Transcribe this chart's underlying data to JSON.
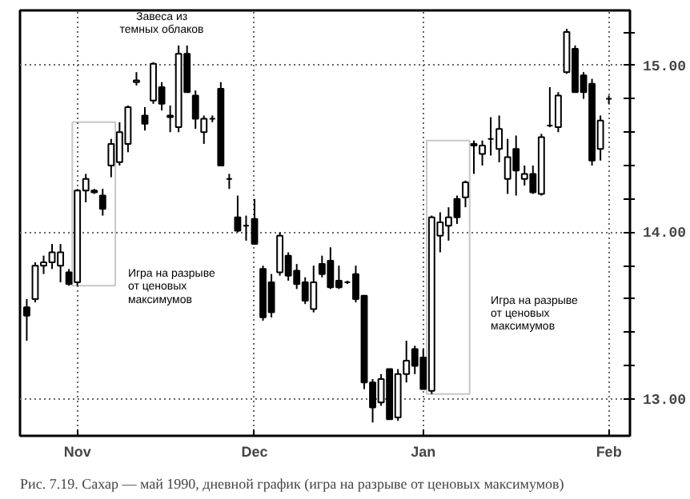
{
  "chart_data": {
    "type": "candlestick",
    "title": "Рис. 7.19. Сахар — май 1990, дневной график (игра на разрыве от ценовых максимумов)",
    "categories": [
      null,
      null,
      null,
      null,
      null,
      null,
      "Nov",
      null,
      null,
      null,
      null,
      null,
      null,
      null,
      null,
      null,
      null,
      null,
      null,
      null,
      null,
      null,
      null,
      null,
      null,
      null,
      null,
      "Dec",
      null,
      null,
      null,
      null,
      null,
      null,
      null,
      null,
      null,
      null,
      null,
      null,
      null,
      null,
      null,
      null,
      null,
      null,
      null,
      "Jan",
      null,
      null,
      null,
      null,
      null,
      null,
      null,
      null,
      null,
      null,
      null,
      null,
      null,
      null,
      null,
      null,
      null,
      null,
      null,
      null,
      null,
      "Feb"
    ],
    "ohlc": [
      [
        13.55,
        13.6,
        13.35,
        13.5
      ],
      [
        13.6,
        13.82,
        13.58,
        13.8
      ],
      [
        13.8,
        13.86,
        13.75,
        13.82
      ],
      [
        13.82,
        13.93,
        13.78,
        13.88
      ],
      [
        13.8,
        13.93,
        13.7,
        13.88
      ],
      [
        13.76,
        13.78,
        13.68,
        13.69
      ],
      [
        13.7,
        14.26,
        13.68,
        14.25
      ],
      [
        14.25,
        14.35,
        14.18,
        14.32
      ],
      [
        14.25,
        14.26,
        14.23,
        14.24
      ],
      [
        14.22,
        14.26,
        14.1,
        14.14
      ],
      [
        14.4,
        14.56,
        14.33,
        14.53
      ],
      [
        14.42,
        14.66,
        14.4,
        14.6
      ],
      [
        14.53,
        14.76,
        14.48,
        14.75
      ],
      [
        14.9,
        14.96,
        14.88,
        14.91
      ],
      [
        14.7,
        14.75,
        14.61,
        14.65
      ],
      [
        14.79,
        15.02,
        14.77,
        15.01
      ],
      [
        14.87,
        14.9,
        14.73,
        14.77
      ],
      [
        14.7,
        14.76,
        14.6,
        14.69
      ],
      [
        14.63,
        15.12,
        14.6,
        15.07
      ],
      [
        15.07,
        15.12,
        14.84,
        14.84
      ],
      [
        14.82,
        14.85,
        14.62,
        14.68
      ],
      [
        14.6,
        14.7,
        14.53,
        14.68
      ],
      [
        14.68,
        14.7,
        14.66,
        14.68
      ],
      [
        14.86,
        14.9,
        14.4,
        14.4
      ],
      [
        14.32,
        14.35,
        14.26,
        14.32
      ],
      [
        14.09,
        14.22,
        14.0,
        14.01
      ],
      [
        14.04,
        14.1,
        13.95,
        14.04
      ],
      [
        14.08,
        14.2,
        13.93,
        13.93
      ],
      [
        13.78,
        13.8,
        13.47,
        13.49
      ],
      [
        13.7,
        13.75,
        13.49,
        13.52
      ],
      [
        13.76,
        14.0,
        13.74,
        13.98
      ],
      [
        13.86,
        13.88,
        13.71,
        13.74
      ],
      [
        13.77,
        13.81,
        13.66,
        13.69
      ],
      [
        13.7,
        13.73,
        13.57,
        13.59
      ],
      [
        13.54,
        13.8,
        13.52,
        13.7
      ],
      [
        13.81,
        13.86,
        13.73,
        13.75
      ],
      [
        13.83,
        13.91,
        13.66,
        13.67
      ],
      [
        13.71,
        13.8,
        13.66,
        13.67
      ],
      [
        13.7,
        13.71,
        13.69,
        13.7
      ],
      [
        13.75,
        13.8,
        13.58,
        13.6
      ],
      [
        13.62,
        13.62,
        13.06,
        13.1
      ],
      [
        13.1,
        13.12,
        12.86,
        12.95
      ],
      [
        12.98,
        13.15,
        12.96,
        13.12
      ],
      [
        13.18,
        13.18,
        12.88,
        12.88
      ],
      [
        12.89,
        13.18,
        12.87,
        13.15
      ],
      [
        13.15,
        13.35,
        13.1,
        13.23
      ],
      [
        13.3,
        13.32,
        13.15,
        13.2
      ],
      [
        13.25,
        13.3,
        13.06,
        13.06
      ],
      [
        13.05,
        14.1,
        13.03,
        14.09
      ],
      [
        13.98,
        14.12,
        13.88,
        14.06
      ],
      [
        14.04,
        14.15,
        13.95,
        14.09
      ],
      [
        14.2,
        14.22,
        14.05,
        14.09
      ],
      [
        14.21,
        14.31,
        14.15,
        14.3
      ],
      [
        14.52,
        14.55,
        14.35,
        14.53
      ],
      [
        14.47,
        14.55,
        14.4,
        14.52
      ],
      [
        14.56,
        14.69,
        14.46,
        14.56
      ],
      [
        14.5,
        14.7,
        14.42,
        14.62
      ],
      [
        14.32,
        14.56,
        14.23,
        14.45
      ],
      [
        14.5,
        14.58,
        14.22,
        14.37
      ],
      [
        14.32,
        14.4,
        14.28,
        14.35
      ],
      [
        14.35,
        14.4,
        14.23,
        14.24
      ],
      [
        14.23,
        14.59,
        14.22,
        14.57
      ],
      [
        14.64,
        14.87,
        14.63,
        14.64
      ],
      [
        14.63,
        14.84,
        14.6,
        14.82
      ],
      [
        14.96,
        15.22,
        14.95,
        15.2
      ],
      [
        15.1,
        15.12,
        14.84,
        14.84
      ],
      [
        14.94,
        14.96,
        14.8,
        14.84
      ],
      [
        14.89,
        14.92,
        14.4,
        14.43
      ],
      [
        14.5,
        14.7,
        14.43,
        14.67
      ],
      [
        14.8,
        14.82,
        14.77,
        14.8
      ]
    ],
    "color": "#000000",
    "ylim": [
      12.78,
      15.33
    ],
    "yticks": [
      {
        "value": 13,
        "label": "13.00"
      },
      {
        "value": 13.2,
        "label": null
      },
      {
        "value": 13.4,
        "label": null
      },
      {
        "value": 13.6,
        "label": null
      },
      {
        "value": 13.8,
        "label": null
      },
      {
        "value": 14,
        "label": "14.00"
      },
      {
        "value": 14.2,
        "label": null
      },
      {
        "value": 14.4,
        "label": null
      },
      {
        "value": 14.6,
        "label": null
      },
      {
        "value": 14.8,
        "label": null
      },
      {
        "value": 15,
        "label": "15.00"
      },
      {
        "value": 15.2,
        "label": null
      }
    ],
    "grid": true,
    "annotations": [
      "Завеса из\nтемных облаков",
      "Игра на разрыве\nот ценовых\nмаксимумов",
      "Игра на разрыве\nот ценовых\nмаксимумов"
    ]
  }
}
